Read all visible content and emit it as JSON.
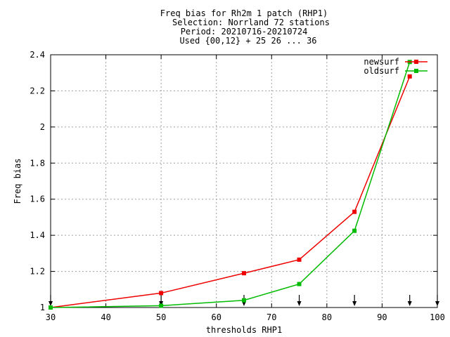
{
  "chart_data": {
    "type": "line",
    "title_lines": [
      "Freq bias  for Rh2m 1 patch (RHP1)",
      "Selection: Norrland     72 stations",
      "Period: 20210716-20210724",
      "Used {00,12} + 25 26 ... 36"
    ],
    "xlabel": "thresholds RHP1",
    "ylabel": "Freq bias",
    "xlim": [
      30,
      100
    ],
    "ylim": [
      1,
      2.4
    ],
    "x_ticks": [
      30,
      40,
      50,
      60,
      70,
      80,
      90,
      100
    ],
    "y_ticks": [
      1,
      1.2,
      1.4,
      1.6,
      1.8,
      2,
      2.2,
      2.4
    ],
    "x_tick_labels": [
      "30",
      "40",
      "50",
      "60",
      "70",
      "80",
      "90",
      "100"
    ],
    "y_tick_labels": [
      "1",
      "1.2",
      "1.4",
      "1.6",
      "1.8",
      "2",
      "2.2",
      "2.4"
    ],
    "grid": true,
    "legend_position": "top-right",
    "series": [
      {
        "name": "newsurf",
        "color": "#ee0000",
        "x": [
          30,
          50,
          65,
          75,
          85,
          95
        ],
        "y": [
          1.0,
          1.08,
          1.19,
          1.265,
          1.53,
          2.28
        ]
      },
      {
        "name": "oldsurf",
        "color": "#00bb00",
        "x": [
          30,
          50,
          65,
          75,
          85,
          95
        ],
        "y": [
          1.0,
          1.01,
          1.04,
          1.13,
          1.425,
          2.36
        ]
      }
    ],
    "threshold_markers": [
      30,
      50,
      65,
      75,
      85,
      95,
      100
    ]
  }
}
